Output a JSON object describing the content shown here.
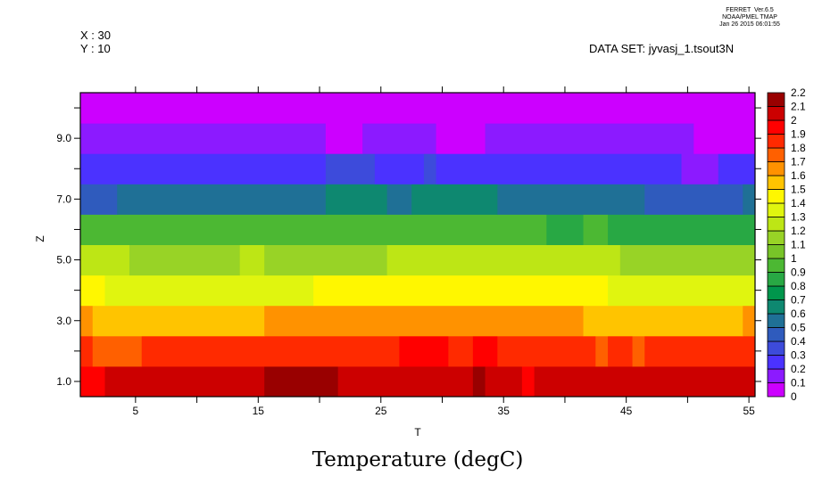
{
  "header": {
    "ferret_version": "FERRET  Ver.6.5",
    "ferret_org": "NOAA/PMEL TMAP",
    "ferret_date": "Jan 26 2015 06:01:55",
    "x_info": "X : 30",
    "y_info": "Y : 10",
    "dataset": "DATA SET: jyvasj_1.tsout3N"
  },
  "chart_data": {
    "type": "heatmap",
    "title": "Temperature (degC)",
    "xlabel": "T",
    "ylabel": "Z",
    "xlim": [
      0.5,
      55.5
    ],
    "ylim": [
      0.5,
      10.5
    ],
    "x_ticks": [
      5,
      15,
      25,
      35,
      45,
      55
    ],
    "x_tick_labels": [
      "5",
      "15",
      "25",
      "35",
      "45",
      "55"
    ],
    "y_ticks": [
      1,
      3,
      5,
      7,
      9
    ],
    "y_tick_labels": [
      "1.0",
      "3.0",
      "5.0",
      "7.0",
      "9.0"
    ],
    "colorbar": {
      "levels": [
        0,
        0.1,
        0.2,
        0.3,
        0.4,
        0.5,
        0.6,
        0.7,
        0.8,
        0.9,
        1,
        1.1,
        1.2,
        1.3,
        1.4,
        1.5,
        1.6,
        1.7,
        1.8,
        1.9,
        2,
        2.1,
        2.2
      ],
      "labels": [
        "0",
        "0.1",
        "0.2",
        "0.3",
        "0.4",
        "0.5",
        "0.6",
        "0.7",
        "0.8",
        "0.9",
        "1",
        "1.1",
        "1.2",
        "1.3",
        "1.4",
        "1.5",
        "1.6",
        "1.7",
        "1.8",
        "1.9",
        "2",
        "2.1",
        "2.2"
      ],
      "colors": [
        "#cc00ff",
        "#8c1aff",
        "#4b32ff",
        "#3d4bdb",
        "#2f5bbd",
        "#1f7096",
        "#0e8870",
        "#00964c",
        "#28a844",
        "#4cb833",
        "#78c428",
        "#98d326",
        "#bde615",
        "#e0f50f",
        "#fff700",
        "#ffc400",
        "#ff9200",
        "#ff6000",
        "#ff2a00",
        "#ff0000",
        "#cc0000",
        "#990000"
      ]
    },
    "rows_note": "runs of [T_start, T_end, value] for each Z level",
    "rows": [
      {
        "z": 1,
        "runs": [
          [
            1,
            2,
            1.95
          ],
          [
            3,
            15,
            2.05
          ],
          [
            16,
            21,
            2.15
          ],
          [
            22,
            32,
            2.05
          ],
          [
            33,
            33,
            2.15
          ],
          [
            34,
            36,
            2.05
          ],
          [
            37,
            37,
            1.95
          ],
          [
            38,
            55,
            2.05
          ]
        ]
      },
      {
        "z": 2,
        "runs": [
          [
            1,
            1,
            1.85
          ],
          [
            2,
            5,
            1.75
          ],
          [
            6,
            26,
            1.85
          ],
          [
            27,
            30,
            1.95
          ],
          [
            31,
            32,
            1.85
          ],
          [
            33,
            34,
            1.95
          ],
          [
            35,
            42,
            1.85
          ],
          [
            43,
            43,
            1.75
          ],
          [
            44,
            45,
            1.85
          ],
          [
            46,
            46,
            1.75
          ],
          [
            47,
            55,
            1.85
          ]
        ]
      },
      {
        "z": 3,
        "runs": [
          [
            1,
            1,
            1.65
          ],
          [
            2,
            15,
            1.55
          ],
          [
            16,
            41,
            1.65
          ],
          [
            42,
            54,
            1.55
          ],
          [
            55,
            55,
            1.65
          ]
        ]
      },
      {
        "z": 4,
        "runs": [
          [
            1,
            2,
            1.45
          ],
          [
            3,
            19,
            1.35
          ],
          [
            20,
            43,
            1.45
          ],
          [
            44,
            55,
            1.35
          ]
        ]
      },
      {
        "z": 5,
        "runs": [
          [
            1,
            4,
            1.25
          ],
          [
            5,
            13,
            1.15
          ],
          [
            14,
            15,
            1.25
          ],
          [
            16,
            25,
            1.15
          ],
          [
            26,
            44,
            1.25
          ],
          [
            45,
            55,
            1.15
          ]
        ]
      },
      {
        "z": 6,
        "runs": [
          [
            1,
            38,
            0.95
          ],
          [
            39,
            41,
            0.85
          ],
          [
            42,
            43,
            0.95
          ],
          [
            44,
            55,
            0.85
          ]
        ]
      },
      {
        "z": 7,
        "runs": [
          [
            1,
            3,
            0.45
          ],
          [
            4,
            20,
            0.55
          ],
          [
            21,
            25,
            0.65
          ],
          [
            26,
            27,
            0.55
          ],
          [
            28,
            34,
            0.65
          ],
          [
            35,
            46,
            0.55
          ],
          [
            47,
            54,
            0.45
          ],
          [
            55,
            55,
            0.55
          ]
        ]
      },
      {
        "z": 8,
        "runs": [
          [
            1,
            20,
            0.25
          ],
          [
            21,
            24,
            0.35
          ],
          [
            25,
            28,
            0.25
          ],
          [
            29,
            29,
            0.35
          ],
          [
            30,
            49,
            0.25
          ],
          [
            50,
            52,
            0.15
          ],
          [
            53,
            55,
            0.25
          ]
        ]
      },
      {
        "z": 9,
        "runs": [
          [
            1,
            20,
            0.15
          ],
          [
            21,
            23,
            0.05
          ],
          [
            24,
            29,
            0.15
          ],
          [
            30,
            33,
            0.05
          ],
          [
            34,
            50,
            0.15
          ],
          [
            51,
            55,
            0.05
          ]
        ]
      },
      {
        "z": 10,
        "runs": [
          [
            1,
            55,
            0.05
          ]
        ]
      }
    ]
  }
}
